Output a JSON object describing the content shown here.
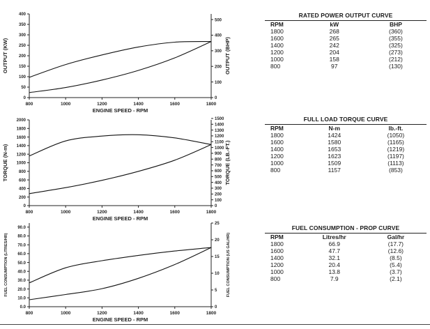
{
  "chart_data": [
    {
      "type": "line",
      "xlabel": "ENGINE SPEED - RPM",
      "ylabel": "OUTPUT (KW)",
      "y2label": "OUTPUT (BHP)",
      "x_ticks": [
        "800",
        "1000",
        "1200",
        "1400",
        "1600",
        "1800"
      ],
      "y_ticks": [
        "0",
        "50",
        "100",
        "150",
        "200",
        "250",
        "300",
        "350",
        "400"
      ],
      "y2_ticks": [
        "0",
        "100",
        "200",
        "300",
        "400",
        "500"
      ],
      "xlim": [
        800,
        1800
      ],
      "ylim": [
        0,
        400
      ],
      "y2lim": [
        0,
        536
      ],
      "series": [
        {
          "x": [
            800,
            1000,
            1200,
            1400,
            1600,
            1800
          ],
          "values": [
            97,
            158,
            204,
            242,
            265,
            268
          ]
        },
        {
          "x": [
            800,
            1000,
            1200,
            1400,
            1600,
            1800
          ],
          "values": [
            24,
            48,
            84,
            130,
            190,
            268
          ]
        }
      ]
    },
    {
      "type": "line",
      "xlabel": "ENGINE SPEED - RPM",
      "ylabel": "TORQUE (N-m)",
      "y2label": "TORQUE (LB.-FT.)",
      "x_ticks": [
        "800",
        "1000",
        "1200",
        "1400",
        "1600",
        "1800"
      ],
      "y_ticks": [
        "0",
        "200",
        "400",
        "600",
        "800",
        "1000",
        "1200",
        "1400",
        "1600",
        "1800",
        "2000"
      ],
      "y2_ticks": [
        "0",
        "100",
        "200",
        "300",
        "400",
        "500",
        "600",
        "700",
        "800",
        "900",
        "1000",
        "1100",
        "1200",
        "1300",
        "1400",
        "1500"
      ],
      "xlim": [
        800,
        1800
      ],
      "ylim": [
        0,
        2000
      ],
      "y2lim": [
        0,
        1475
      ],
      "series": [
        {
          "x": [
            800,
            1000,
            1200,
            1400,
            1600,
            1800
          ],
          "values": [
            1157,
            1509,
            1623,
            1653,
            1580,
            1424
          ]
        },
        {
          "x": [
            800,
            1000,
            1200,
            1400,
            1600,
            1800
          ],
          "values": [
            280,
            420,
            590,
            800,
            1060,
            1424
          ]
        }
      ]
    },
    {
      "type": "line",
      "xlabel": "ENGINE SPEED - RPM",
      "ylabel": "FUEL CONSUMPTION (LITRES/HR)",
      "y2label": "FUEL CONSUMPTION (US GAL/HR)",
      "x_ticks": [
        "800",
        "1000",
        "1200",
        "1400",
        "1600",
        "1800"
      ],
      "y_ticks": [
        "0.0",
        "10.0",
        "20.0",
        "30.0",
        "40.0",
        "50.0",
        "60.0",
        "70.0",
        "80.0",
        "90.0"
      ],
      "y2_ticks": [
        "0",
        "5",
        "10",
        "15",
        "20",
        "25"
      ],
      "xlim": [
        800,
        1800
      ],
      "ylim": [
        0,
        94.6
      ],
      "y2lim": [
        0,
        25
      ],
      "series": [
        {
          "x": [
            800,
            1000,
            1200,
            1400,
            1600,
            1800
          ],
          "values": [
            27,
            44,
            52,
            58,
            63,
            66.9
          ]
        },
        {
          "x": [
            800,
            1000,
            1200,
            1400,
            1600,
            1800
          ],
          "values": [
            7.9,
            13.8,
            20.4,
            32.1,
            47.7,
            66.9
          ]
        }
      ]
    }
  ],
  "tables": [
    {
      "title": "RATED POWER OUTPUT CURVE",
      "headers": [
        "RPM",
        "kW",
        "BHP"
      ],
      "rows": [
        [
          "1800",
          "268",
          "(360)"
        ],
        [
          "1600",
          "265",
          "(355)"
        ],
        [
          "1400",
          "242",
          "(325)"
        ],
        [
          "1200",
          "204",
          "(273)"
        ],
        [
          "1000",
          "158",
          "(212)"
        ],
        [
          "800",
          "97",
          "(130)"
        ]
      ]
    },
    {
      "title": "FULL LOAD TORQUE CURVE",
      "headers": [
        "RPM",
        "N-m",
        "lb.-ft."
      ],
      "rows": [
        [
          "1800",
          "1424",
          "(1050)"
        ],
        [
          "1600",
          "1580",
          "(1165)"
        ],
        [
          "1400",
          "1653",
          "(1219)"
        ],
        [
          "1200",
          "1623",
          "(1197)"
        ],
        [
          "1000",
          "1509",
          "(1113)"
        ],
        [
          "800",
          "1157",
          "(853)"
        ]
      ]
    },
    {
      "title": "FUEL CONSUMPTION - PROP CURVE",
      "headers": [
        "RPM",
        "Litres/hr",
        "Gal/hr"
      ],
      "rows": [
        [
          "1800",
          "66.9",
          "(17.7)"
        ],
        [
          "1600",
          "47.7",
          "(12.6)"
        ],
        [
          "1400",
          "32.1",
          "(8.5)"
        ],
        [
          "1200",
          "20.4",
          "(5.4)"
        ],
        [
          "1000",
          "13.8",
          "(3.7)"
        ],
        [
          "800",
          "7.9",
          "(2.1)"
        ]
      ]
    }
  ]
}
